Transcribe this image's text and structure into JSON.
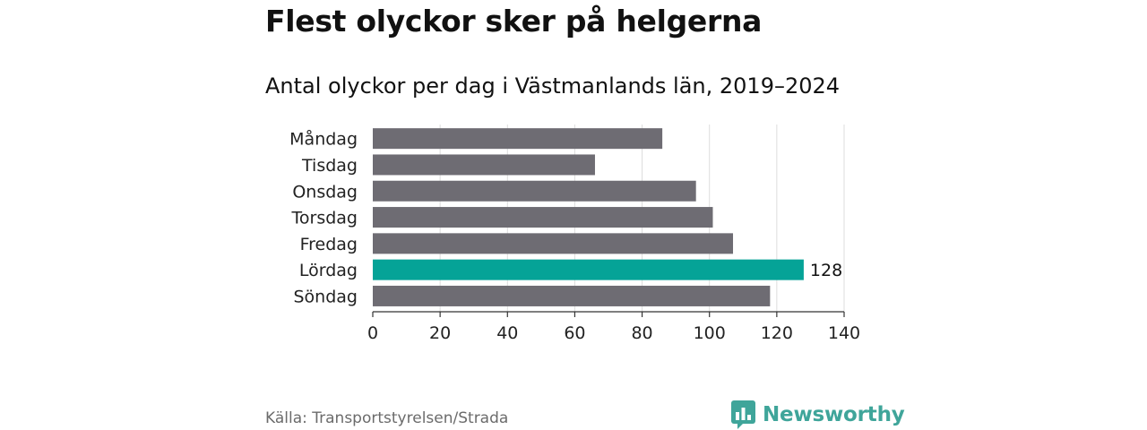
{
  "title": "Flest olyckor sker på helgerna",
  "subtitle": "Antal olyckor per dag i Västmanlands län, 2019–2024",
  "source": "Källa: Transportstyrelsen/Strada",
  "brand": {
    "name": "Newsworthy",
    "icon": "bar-chart-logo-icon"
  },
  "colors": {
    "default_bar": "#6e6c73",
    "highlight_bar": "#05a397",
    "grid": "#dddddd",
    "axis": "#333333",
    "brand": "#3fa59a"
  },
  "chart_data": {
    "type": "bar",
    "orientation": "horizontal",
    "categories": [
      "Måndag",
      "Tisdag",
      "Onsdag",
      "Torsdag",
      "Fredag",
      "Lördag",
      "Söndag"
    ],
    "values": [
      86,
      66,
      96,
      101,
      107,
      128,
      118
    ],
    "highlight_index": 5,
    "data_labels": [
      {
        "index": 5,
        "text": "128"
      }
    ],
    "xlim": [
      0,
      140
    ],
    "xticks": [
      0,
      20,
      40,
      60,
      80,
      100,
      120,
      140
    ],
    "xlabel": "",
    "ylabel": "",
    "grid": true
  }
}
